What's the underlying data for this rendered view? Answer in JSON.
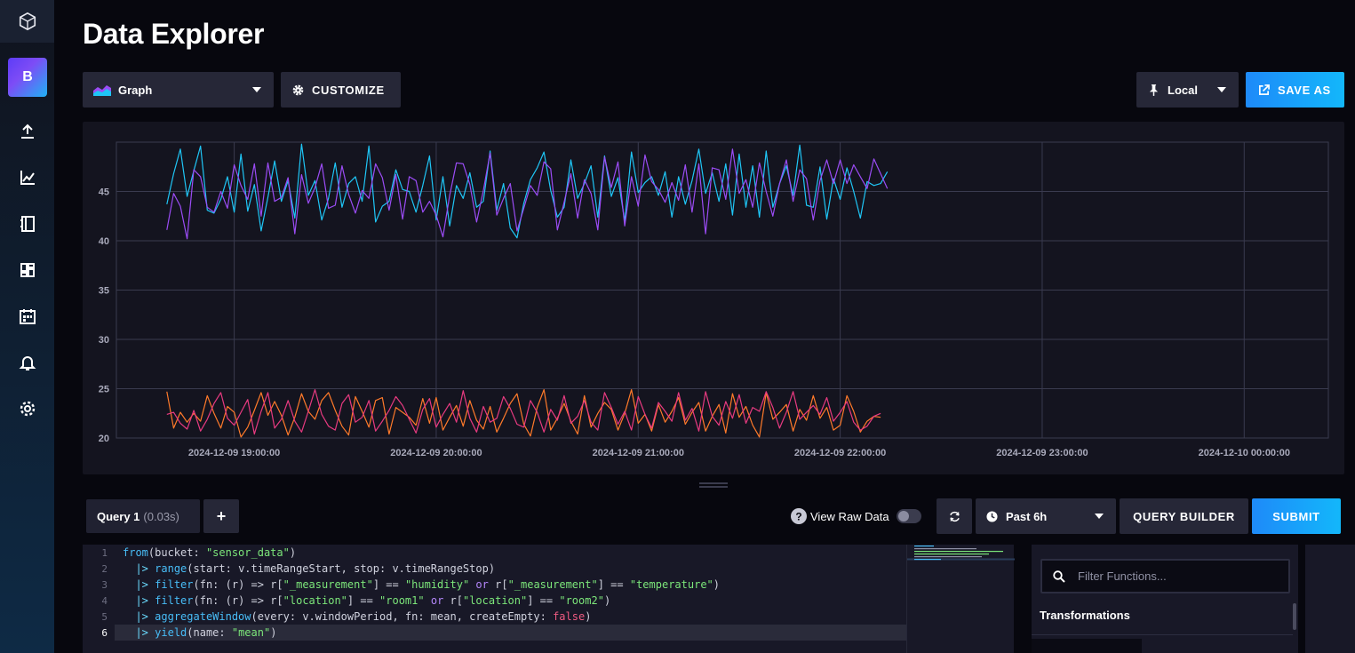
{
  "page": {
    "title": "Data Explorer"
  },
  "sidebar": {
    "org_initial": "B",
    "items": [
      {
        "name": "upload-icon"
      },
      {
        "name": "graph-icon"
      },
      {
        "name": "notebook-icon"
      },
      {
        "name": "dashboards-icon"
      },
      {
        "name": "tasks-icon"
      },
      {
        "name": "alerts-icon"
      },
      {
        "name": "settings-icon"
      }
    ]
  },
  "toolbar": {
    "view_type": "Graph",
    "customize_label": "CUSTOMIZE",
    "timezone": "Local",
    "save_as_label": "SAVE AS"
  },
  "chart_data": {
    "type": "line",
    "ylim": [
      20,
      50
    ],
    "yticks": [
      20,
      25,
      30,
      35,
      40,
      45
    ],
    "xrange": [
      "2024-12-09 18:25:00",
      "2024-12-10 00:25:00"
    ],
    "xticks": [
      "2024-12-09 19:00:00",
      "2024-12-09 20:00:00",
      "2024-12-09 21:00:00",
      "2024-12-09 22:00:00",
      "2024-12-09 23:00:00",
      "2024-12-10 00:00:00"
    ],
    "x_start": "2024-12-09 18:40:00",
    "x_step_minutes": 2,
    "series": [
      {
        "color": "#1fc6f6",
        "values": [
          43.7,
          46.8,
          49.3,
          44.5,
          47.1,
          49.6,
          43.1,
          42.8,
          44.2,
          46.5,
          42.9,
          48.8,
          43.0,
          45.7,
          41.0,
          44.4,
          48.1,
          44.0,
          46.1,
          42.3,
          49.8,
          44.6,
          46.1,
          42.1,
          44.3,
          47.9,
          43.4,
          45.8,
          46.5,
          44.0,
          49.6,
          41.9,
          43.5,
          44.0,
          47.2,
          45.2,
          45.0,
          42.9,
          45.6,
          48.6,
          42.1,
          46.5,
          41.5,
          45.6,
          44.3,
          46.9,
          43.4,
          44.0,
          49.1,
          43.1,
          45.8,
          41.3,
          40.3,
          43.8,
          46.2,
          47.4,
          49.0,
          45.1,
          42.4,
          43.4,
          48.2,
          44.3,
          45.8,
          47.6,
          42.4,
          48.6,
          44.5,
          46.4,
          42.0,
          49.0,
          44.9,
          45.9,
          46.5,
          44.6,
          47.0,
          42.4,
          46.5,
          43.7,
          46.1,
          49.3,
          44.8,
          46.9,
          44.0,
          47.8,
          42.6,
          48.8,
          43.4,
          47.6,
          42.4,
          49.1,
          43.4,
          45.8,
          47.6,
          44.6,
          49.7,
          43.6,
          43.4,
          47.5,
          42.2,
          46.3,
          44.2,
          47.4,
          45.0,
          42.3,
          46.0,
          45.6,
          45.8,
          47.0
        ]
      },
      {
        "color": "#9b4cf5",
        "values": [
          41.1,
          44.8,
          43.5,
          40.2,
          47.2,
          46.5,
          43.4,
          42.9,
          45.0,
          43.3,
          47.7,
          45.6,
          44.2,
          47.8,
          42.5,
          47.9,
          44.0,
          44.4,
          46.4,
          40.7,
          46.7,
          43.8,
          45.4,
          47.8,
          43.3,
          43.6,
          47.6,
          44.7,
          42.8,
          45.1,
          44.3,
          47.8,
          46.4,
          43.1,
          46.7,
          42.2,
          46.5,
          46.1,
          42.9,
          44.0,
          42.6,
          40.4,
          44.6,
          47.9,
          47.8,
          45.7,
          41.9,
          45.1,
          48.9,
          42.6,
          44.3,
          45.8,
          41.0,
          43.3,
          45.6,
          44.6,
          48.0,
          47.3,
          41.1,
          43.9,
          46.8,
          42.3,
          46.2,
          44.8,
          41.1,
          48.5,
          45.4,
          48.0,
          41.5,
          46.5,
          43.5,
          48.7,
          46.0,
          45.2,
          43.9,
          45.9,
          44.1,
          47.7,
          42.9,
          47.8,
          40.7,
          47.4,
          47.2,
          44.2,
          49.3,
          44.8,
          46.2,
          43.4,
          47.9,
          45.0,
          42.5,
          45.8,
          48.2,
          44.0,
          47.2,
          46.3,
          42.1,
          46.1,
          48.2,
          45.8,
          48.2,
          45.8,
          47.7,
          46.5,
          45.3,
          48.3,
          46.8,
          45.3
        ]
      },
      {
        "color": "#ff7a2a",
        "values": [
          24.7,
          21.0,
          22.6,
          21.6,
          22.5,
          21.7,
          24.3,
          22.5,
          21.0,
          23.2,
          22.6,
          20.1,
          21.1,
          22.8,
          24.6,
          22.3,
          23.7,
          22.3,
          20.3,
          22.1,
          24.5,
          22.7,
          21.9,
          23.8,
          24.6,
          22.8,
          21.2,
          20.3,
          24.2,
          22.7,
          21.1,
          23.8,
          24.1,
          20.4,
          23.1,
          22.6,
          22.1,
          21.3,
          24.0,
          21.5,
          24.1,
          20.8,
          22.1,
          23.3,
          21.2,
          23.8,
          21.8,
          20.9,
          23.2,
          20.6,
          22.0,
          23.5,
          24.5,
          21.4,
          20.2,
          23.1,
          24.9,
          20.8,
          22.0,
          23.5,
          21.7,
          20.4,
          24.3,
          21.1,
          22.5,
          23.6,
          22.9,
          20.8,
          22.5,
          24.9,
          21.5,
          22.4,
          20.7,
          23.4,
          21.6,
          22.7,
          24.1,
          21.4,
          22.6,
          23.6,
          20.7,
          22.2,
          23.4,
          20.5,
          24.5,
          22.1,
          23.2,
          21.3,
          20.1,
          24.6,
          21.9,
          22.6,
          23.4,
          20.7,
          22.9,
          21.8,
          24.3,
          22.0,
          23.1,
          20.8,
          21.3,
          24.3,
          22.7,
          20.6,
          21.7,
          22.2,
          22.1
        ]
      },
      {
        "color": "#e73a80",
        "values": [
          22.4,
          22.6,
          21.5,
          20.9,
          22.8,
          20.7,
          21.9,
          23.5,
          24.6,
          22.0,
          21.3,
          22.6,
          23.9,
          20.4,
          22.7,
          24.6,
          21.0,
          21.9,
          23.8,
          21.7,
          20.6,
          22.7,
          24.9,
          22.4,
          21.2,
          20.8,
          23.5,
          24.4,
          21.6,
          22.1,
          23.8,
          20.7,
          21.7,
          22.8,
          24.2,
          23.3,
          21.9,
          20.5,
          22.9,
          24.0,
          21.1,
          22.4,
          23.5,
          21.6,
          24.8,
          22.0,
          20.6,
          23.2,
          21.6,
          22.0,
          24.2,
          23.0,
          21.4,
          21.1,
          23.8,
          22.6,
          20.6,
          22.9,
          21.8,
          24.3,
          21.5,
          22.2,
          23.8,
          21.6,
          20.8,
          24.6,
          23.1,
          21.4,
          22.7,
          20.8,
          24.2,
          22.4,
          21.0,
          23.6,
          22.7,
          21.7,
          24.6,
          21.8,
          23.0,
          20.7,
          24.7,
          22.2,
          21.3,
          23.7,
          22.0,
          24.4,
          21.5,
          23.1,
          22.7,
          24.7,
          23.1,
          21.0,
          22.6,
          24.7,
          21.9,
          22.6,
          23.3,
          22.4,
          24.1,
          21.7,
          22.6,
          23.7,
          21.6,
          20.8,
          21.2,
          22.2,
          22.5
        ]
      }
    ]
  },
  "query": {
    "tab_label": "Query 1",
    "duration": "(0.03s)",
    "add_label": "+",
    "raw_data_label": "View Raw Data",
    "time_range": "Past 6h",
    "builder_label": "QUERY BUILDER",
    "submit_label": "SUBMIT",
    "line_numbers": [
      "1",
      "2",
      "3",
      "4",
      "5",
      "6"
    ]
  },
  "code": {
    "l1": {
      "from": "from",
      "p1": "(bucket: ",
      "bucket": "\"sensor_data\"",
      "p2": ")"
    },
    "l2": {
      "pipe": "|>",
      "fn": "range",
      "p1": "(start: v.timeRangeStart, stop: v.timeRangeStop)"
    },
    "l3": {
      "pipe": "|>",
      "fn": "filter",
      "p1": "(fn: (r) => r[",
      "k1": "\"_measurement\"",
      "p2": "] == ",
      "v1": "\"humidity\"",
      "or": "or",
      "p3": " r[",
      "k2": "\"_measurement\"",
      "p4": "] == ",
      "v2": "\"temperature\"",
      "p5": ")"
    },
    "l4": {
      "pipe": "|>",
      "fn": "filter",
      "p1": "(fn: (r) => r[",
      "k1": "\"location\"",
      "p2": "] == ",
      "v1": "\"room1\"",
      "or": "or",
      "p3": " r[",
      "k2": "\"location\"",
      "p4": "] == ",
      "v2": "\"room2\"",
      "p5": ")"
    },
    "l5": {
      "pipe": "|>",
      "fn": "aggregateWindow",
      "p1": "(every: v.windowPeriod, fn: mean, createEmpty: ",
      "bool": "false",
      "p2": ")"
    },
    "l6": {
      "pipe": "|>",
      "fn": "yield",
      "p1": "(name: ",
      "v1": "\"mean\"",
      "p2": ")"
    }
  },
  "functions": {
    "placeholder": "Filter Functions...",
    "section_title": "Transformations"
  }
}
